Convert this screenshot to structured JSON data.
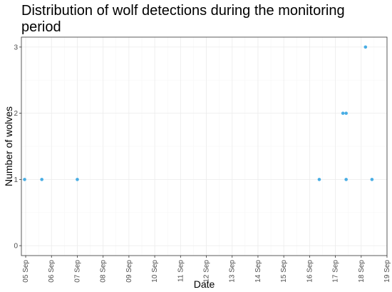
{
  "chart_data": {
    "type": "scatter",
    "title": "Distribution of wolf detections during the monitoring period",
    "xlabel": "Date",
    "ylabel": "Number of wolves",
    "x_tick_labels": [
      "05 Sep",
      "06 Sep",
      "07 Sep",
      "08 Sep",
      "09 Sep",
      "10 Sep",
      "11 Sep",
      "12 Sep",
      "13 Sep",
      "14 Sep",
      "15 Sep",
      "16 Sep",
      "17 Sep",
      "18 Sep",
      "19 Sep"
    ],
    "y_ticks": [
      0,
      1,
      2,
      3
    ],
    "xlim": [
      "2024-09-04 20:00",
      "2024-09-19 00:00"
    ],
    "ylim": [
      -0.15,
      3.15
    ],
    "grid": true,
    "point_color": "#48ADE4",
    "points": [
      {
        "x": "2024-09-04 23:00",
        "y": 1
      },
      {
        "x": "2024-09-05 15:00",
        "y": 1
      },
      {
        "x": "2024-09-07 00:00",
        "y": 1
      },
      {
        "x": "2024-09-16 09:00",
        "y": 1
      },
      {
        "x": "2024-09-17 07:00",
        "y": 2
      },
      {
        "x": "2024-09-17 10:00",
        "y": 2
      },
      {
        "x": "2024-09-17 10:00",
        "y": 1
      },
      {
        "x": "2024-09-18 04:00",
        "y": 3
      },
      {
        "x": "2024-09-18 10:00",
        "y": 1
      }
    ]
  }
}
